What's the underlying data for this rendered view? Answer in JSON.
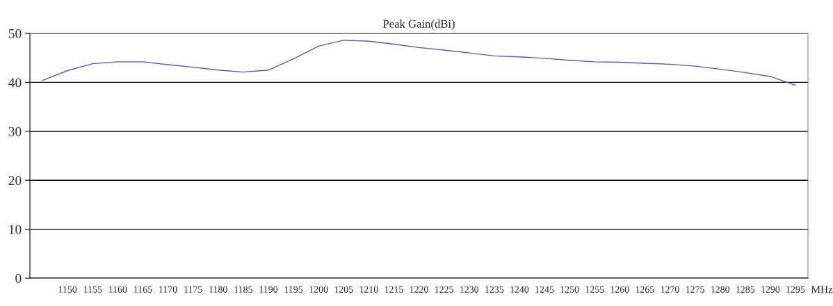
{
  "chart_data": {
    "type": "line",
    "title": "Peak Gain(dBi)",
    "xlabel": "MHz",
    "categories": [
      null,
      "1150",
      "1155",
      "1160",
      "1165",
      "1170",
      "1175",
      "1180",
      "1185",
      "1190",
      "1195",
      "1200",
      "1205",
      "1210",
      "1215",
      "1220",
      "1225",
      "1230",
      "1235",
      "1240",
      "1245",
      "1250",
      "1255",
      "1260",
      "1265",
      "1270",
      "1275",
      "1280",
      "1285",
      "1290",
      "1295"
    ],
    "series": [
      {
        "color": "#5555cc",
        "values": [
          40.4,
          42.4,
          43.8,
          44.2,
          44.2,
          43.6,
          43.1,
          42.5,
          42.1,
          42.5,
          44.8,
          47.4,
          48.6,
          48.4,
          47.8,
          47.1,
          46.6,
          46.0,
          45.4,
          45.2,
          44.9,
          44.5,
          44.2,
          44.1,
          43.9,
          43.7,
          43.3,
          42.7,
          42.0,
          41.2,
          39.4
        ]
      }
    ],
    "ylim": [
      0,
      50
    ],
    "yticks": [
      0,
      10,
      20,
      30,
      40,
      50
    ],
    "grid": "y",
    "legend": false,
    "marker": "none",
    "line_style": "solid"
  }
}
